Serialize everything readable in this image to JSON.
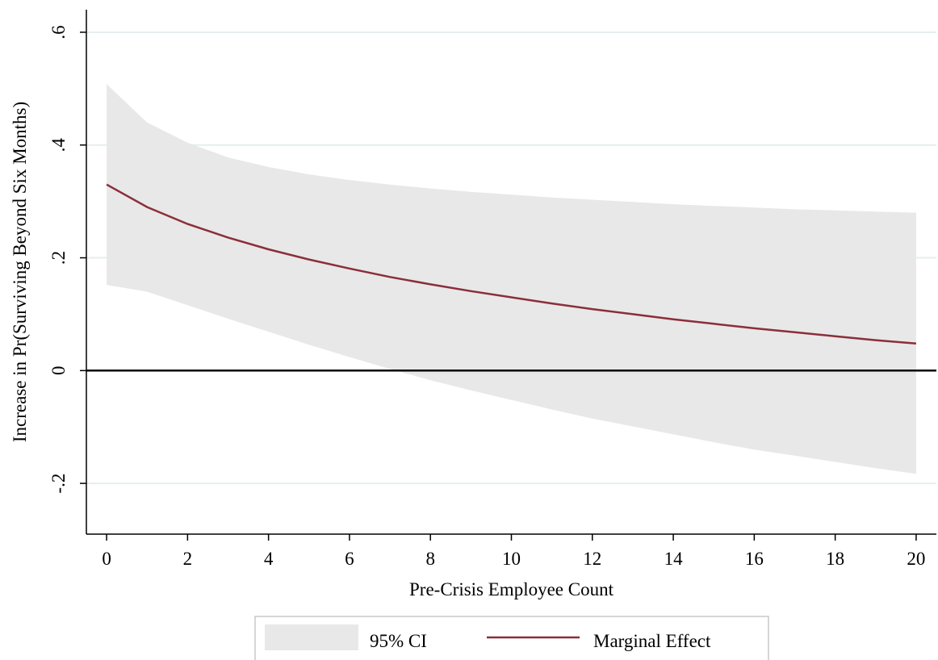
{
  "chart_data": {
    "type": "line",
    "title": "",
    "xlabel": "Pre-Crisis Employee Count",
    "ylabel": "Increase in Pr(Surviving Beyond Six Months)",
    "xlim": [
      -0.5,
      20.5
    ],
    "ylim": [
      -0.29,
      0.64
    ],
    "x_ticks": [
      0,
      2,
      4,
      6,
      8,
      10,
      12,
      14,
      16,
      18,
      20
    ],
    "x_tick_labels": [
      "0",
      "2",
      "4",
      "6",
      "8",
      "10",
      "12",
      "14",
      "16",
      "18",
      "20"
    ],
    "y_ticks": [
      -0.2,
      0,
      0.2,
      0.4,
      0.6
    ],
    "y_tick_labels": [
      "-.2",
      "0",
      ".2",
      ".4",
      ".6"
    ],
    "grid": "horizontal",
    "reference_line": 0,
    "x": [
      0,
      1,
      2,
      3,
      4,
      5,
      6,
      7,
      8,
      9,
      10,
      11,
      12,
      13,
      14,
      15,
      16,
      17,
      18,
      19,
      20
    ],
    "series": [
      {
        "name": "Marginal Effect",
        "kind": "line",
        "color": "#8b2e3a",
        "values": [
          0.33,
          0.29,
          0.26,
          0.236,
          0.215,
          0.197,
          0.181,
          0.166,
          0.153,
          0.141,
          0.13,
          0.119,
          0.109,
          0.1,
          0.091,
          0.083,
          0.075,
          0.068,
          0.061,
          0.054,
          0.048
        ]
      },
      {
        "name": "95% CI",
        "kind": "band",
        "color": "#e8e8e8",
        "upper": [
          0.508,
          0.44,
          0.404,
          0.378,
          0.361,
          0.348,
          0.338,
          0.33,
          0.323,
          0.317,
          0.312,
          0.307,
          0.303,
          0.299,
          0.295,
          0.292,
          0.289,
          0.286,
          0.284,
          0.282,
          0.28
        ],
        "lower": [
          0.152,
          0.14,
          0.116,
          0.092,
          0.069,
          0.046,
          0.024,
          0.003,
          -0.017,
          -0.035,
          -0.052,
          -0.069,
          -0.085,
          -0.099,
          -0.113,
          -0.127,
          -0.14,
          -0.151,
          -0.162,
          -0.173,
          -0.183
        ]
      }
    ],
    "legend": {
      "position": "bottom",
      "items": [
        {
          "label": "95% CI",
          "kind": "band",
          "color": "#e8e8e8"
        },
        {
          "label": "Marginal Effect",
          "kind": "line",
          "color": "#8b2e3a"
        }
      ]
    },
    "colors": {
      "grid": "#e6eeee",
      "axis": "#000000",
      "legend_border": "#c8c8c8"
    }
  }
}
